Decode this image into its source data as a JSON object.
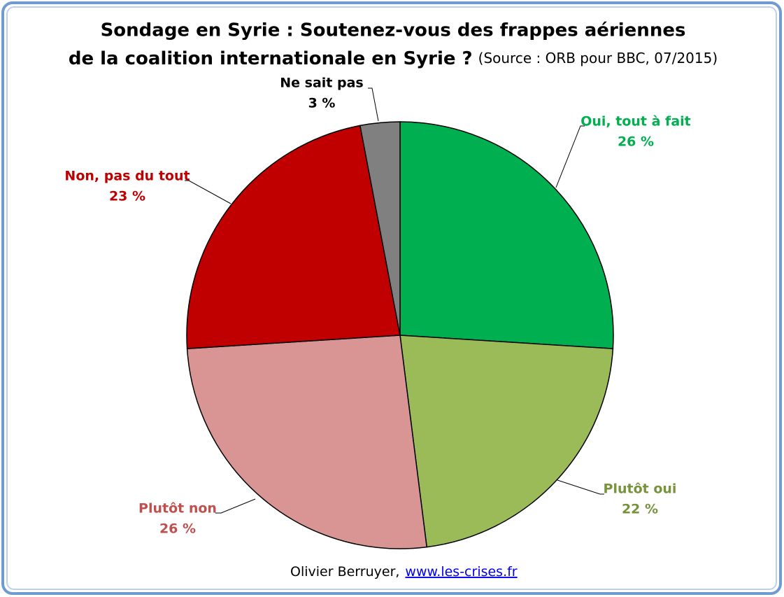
{
  "chart_data": {
    "type": "pie",
    "title": "Sondage en Syrie : Soutenez-vous des frappes aériennes",
    "title_line2": "de la coalition internationale en Syrie ?",
    "subtitle": "(Source : ORB pour BBC, 07/2015)",
    "categories": [
      "Oui, tout à fait",
      "Plutôt oui",
      "Plutôt non",
      "Non, pas du tout",
      "Ne sait pas"
    ],
    "values": [
      26,
      22,
      26,
      23,
      3
    ],
    "value_labels": [
      "26 %",
      "22 %",
      "26 %",
      "23 %",
      "3 %"
    ],
    "colors": [
      "#00b050",
      "#9bbb59",
      "#d99594",
      "#c00000",
      "#808080"
    ],
    "label_colors": [
      "#00b050",
      "#77933c",
      "#c0504d",
      "#c00000",
      "#000000"
    ],
    "footer_author": "Olivier Berruyer,",
    "footer_link": "www.les-crises.fr"
  }
}
